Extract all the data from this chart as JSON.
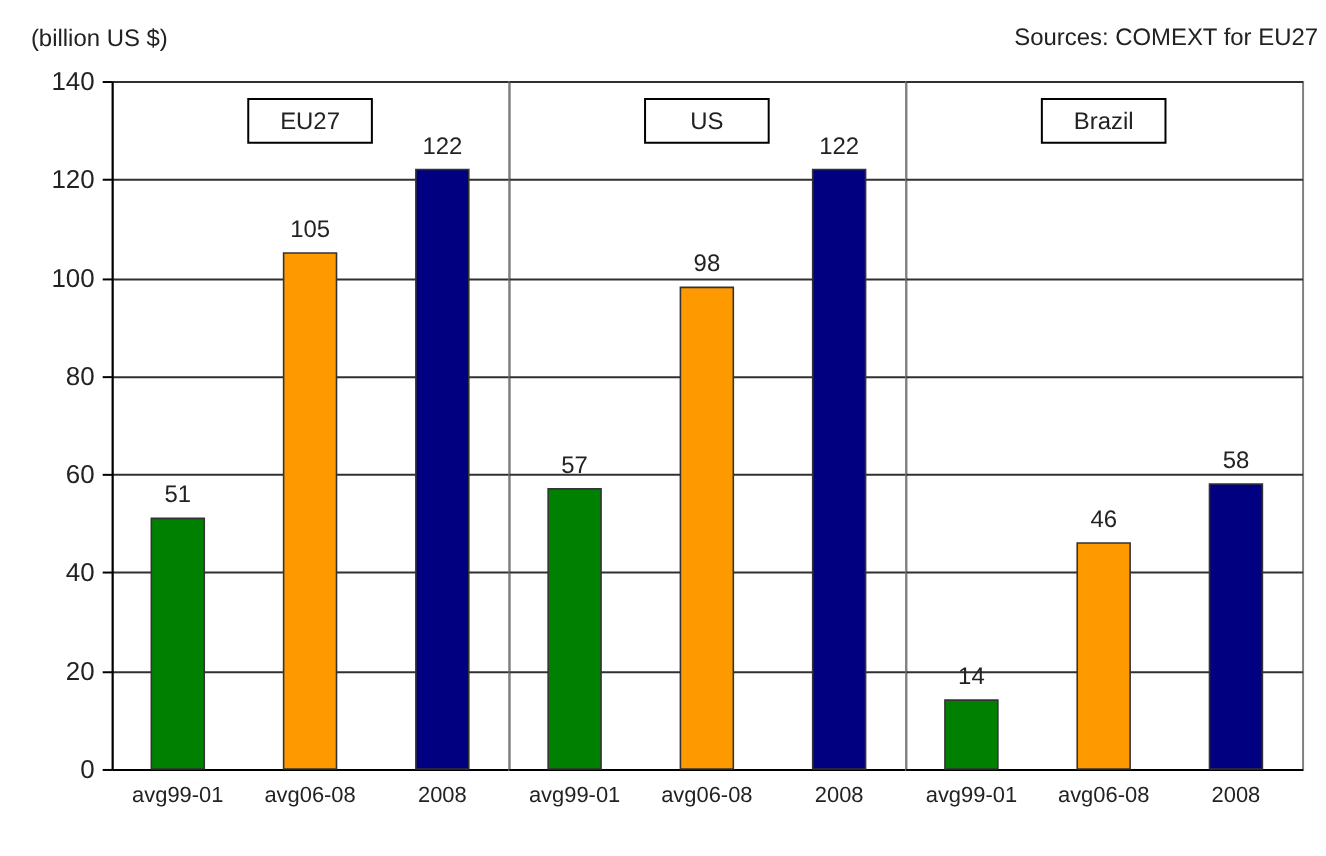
{
  "chart_data": [
    {
      "type": "bar",
      "title": "EU27",
      "ylabel": "(billion US $)",
      "categories": [
        "avg99-01",
        "avg06-08",
        "2008"
      ],
      "values": [
        51,
        105,
        122
      ],
      "colors": [
        "#008000",
        "#ff9900",
        "#000080"
      ],
      "ylim": [
        0,
        140
      ],
      "yticks": [
        0,
        20,
        40,
        60,
        80,
        100,
        120,
        140
      ],
      "grid": "y",
      "data_labels": true
    },
    {
      "type": "bar",
      "title": "US",
      "categories": [
        "avg99-01",
        "avg06-08",
        "2008"
      ],
      "values": [
        57,
        98,
        122
      ],
      "colors": [
        "#008000",
        "#ff9900",
        "#000080"
      ],
      "ylim": [
        0,
        140
      ],
      "yticks": [
        0,
        20,
        40,
        60,
        80,
        100,
        120,
        140
      ],
      "grid": "y",
      "data_labels": true,
      "tick_labels": "x"
    },
    {
      "type": "bar",
      "title": "Brazil",
      "categories": [
        "avg99-01",
        "avg06-08",
        "2008"
      ],
      "values": [
        14,
        46,
        58
      ],
      "colors": [
        "#008000",
        "#ff9900",
        "#000080"
      ],
      "ylim": [
        0,
        140
      ],
      "yticks": [
        0,
        20,
        40,
        60,
        80,
        100,
        120,
        140
      ],
      "grid": "y",
      "data_labels": true,
      "tick_labels": "x",
      "annotations": [
        "Sources: COMEXT for EU27"
      ]
    }
  ]
}
